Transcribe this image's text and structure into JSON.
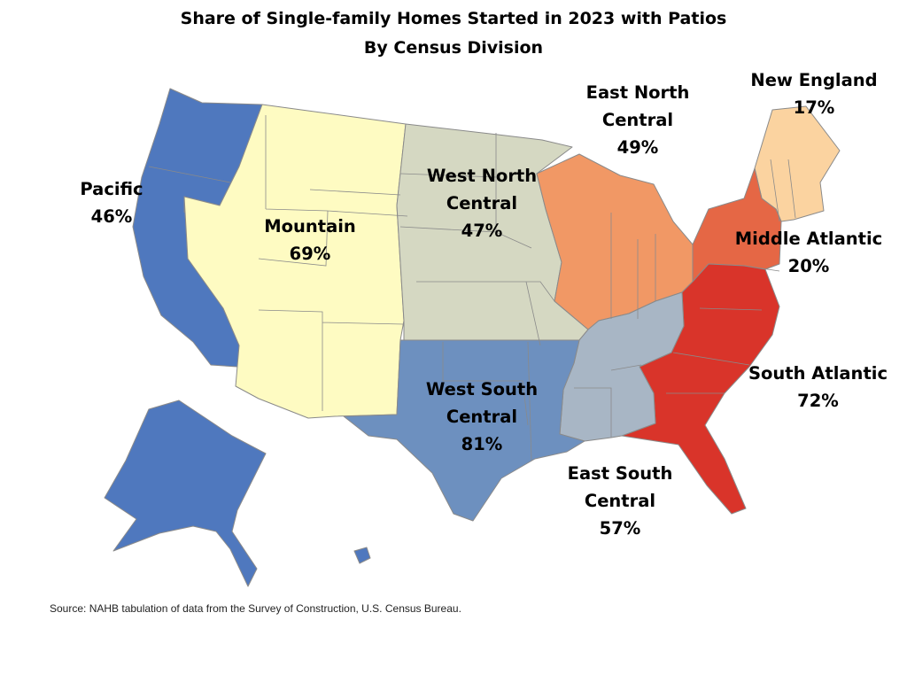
{
  "title_line1": "Share of Single-family Homes Started in 2023 with Patios",
  "title_line2": "By Census Division",
  "source": "Source: NAHB tabulation of data from the Survey of Construction, U.S. Census Bureau.",
  "divisions": [
    {
      "key": "pacific",
      "line1": "Pacific",
      "line2": "",
      "value_text": "46%",
      "value": 46,
      "color": "#4f78be"
    },
    {
      "key": "mountain",
      "line1": "Mountain",
      "line2": "",
      "value_text": "69%",
      "value": 69,
      "color": "#fefbc2"
    },
    {
      "key": "west_north_central",
      "line1": "West North",
      "line2": "Central",
      "value_text": "47%",
      "value": 47,
      "color": "#d5d8c2"
    },
    {
      "key": "east_north_central",
      "line1": "East North",
      "line2": "Central",
      "value_text": "49%",
      "value": 49,
      "color": "#f19865"
    },
    {
      "key": "new_england",
      "line1": "New England",
      "line2": "",
      "value_text": "17%",
      "value": 17,
      "color": "#fbd3a0"
    },
    {
      "key": "middle_atlantic",
      "line1": "Middle Atlantic",
      "line2": "",
      "value_text": "20%",
      "value": 20,
      "color": "#e56745"
    },
    {
      "key": "south_atlantic",
      "line1": "South Atlantic",
      "line2": "",
      "value_text": "72%",
      "value": 72,
      "color": "#d9342a"
    },
    {
      "key": "east_south_central",
      "line1": "East South",
      "line2": "Central",
      "value_text": "57%",
      "value": 57,
      "color": "#a8b6c5"
    },
    {
      "key": "west_south_central",
      "line1": "West South",
      "line2": "Central",
      "value_text": "81%",
      "value": 81,
      "color": "#6d90bf"
    }
  ]
}
